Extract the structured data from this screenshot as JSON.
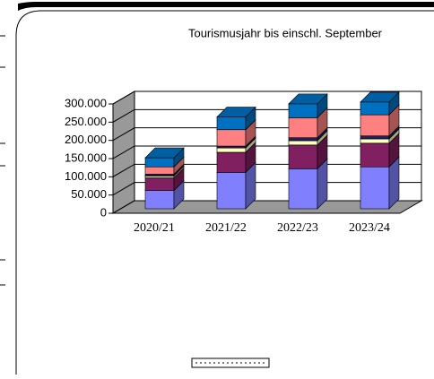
{
  "chart_data": {
    "type": "bar3d_stacked",
    "title": "Tourismusjahr bis einschl. September",
    "categories": [
      "2020/21",
      "2021/22",
      "2022/23",
      "2023/24"
    ],
    "series": [
      {
        "color": "#8080ff",
        "values": [
          50000,
          100000,
          110000,
          115000
        ]
      },
      {
        "color": "#802060",
        "values": [
          35000,
          55000,
          65000,
          65000
        ]
      },
      {
        "color": "#ffffc0",
        "values": [
          5000,
          12000,
          12000,
          12000
        ]
      },
      {
        "color": "#202060",
        "values": [
          5000,
          5000,
          8000,
          8000
        ]
      },
      {
        "color": "#ff8080",
        "values": [
          20000,
          45000,
          55000,
          58000
        ]
      },
      {
        "color": "#0070c0",
        "values": [
          25000,
          35000,
          38000,
          35000
        ]
      }
    ],
    "ylim": [
      0,
      300000
    ],
    "yticks": [
      0,
      {
        "value": 50000,
        "label": "50.000"
      },
      {
        "value": 100000,
        "label": "100.000"
      },
      {
        "value": 150000,
        "label": "150.000"
      },
      {
        "value": 200000,
        "label": "200.000"
      },
      {
        "value": 250000,
        "label": "250.000"
      },
      {
        "value": 300000,
        "label": "300.000"
      }
    ],
    "grid": true
  }
}
